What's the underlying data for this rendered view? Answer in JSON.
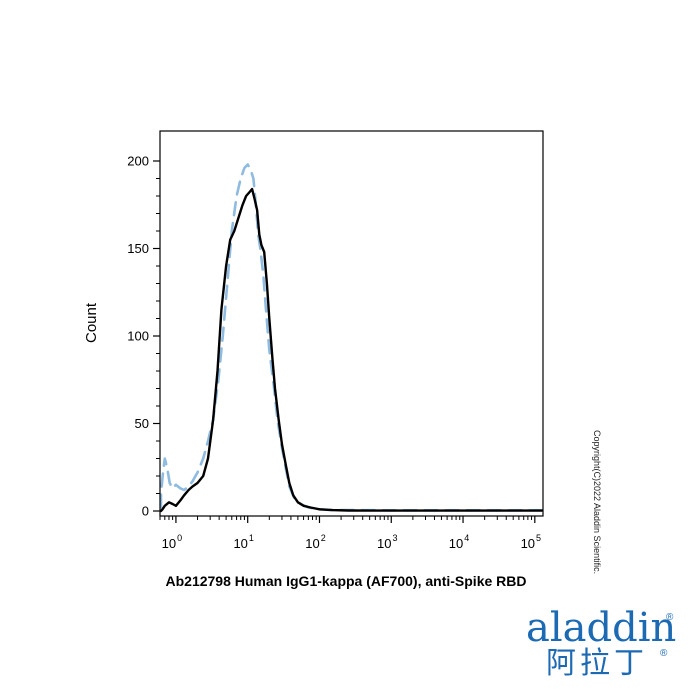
{
  "chart_data": {
    "type": "line",
    "title": "",
    "xlabel": "Ab212798 Human IgG1-kappa (AF700), anti-Spike RBD",
    "ylabel": "Count",
    "x_scale": "log",
    "xlim": [
      0.6,
      130000
    ],
    "ylim": [
      0,
      210
    ],
    "y_ticks": [
      0,
      50,
      100,
      150,
      200
    ],
    "y_tick_labels": [
      "0",
      "50",
      "100",
      "150",
      "200"
    ],
    "x_ticks": [
      {
        "base": "10",
        "exp": "0",
        "value": 1
      },
      {
        "base": "10",
        "exp": "1",
        "value": 10
      },
      {
        "base": "10",
        "exp": "2",
        "value": 100
      },
      {
        "base": "10",
        "exp": "3",
        "value": 1000
      },
      {
        "base": "10",
        "exp": "4",
        "value": 10000
      },
      {
        "base": "10",
        "exp": "5",
        "value": 100000
      }
    ],
    "grid": false,
    "legend": "none",
    "series": [
      {
        "style": "dashed",
        "color": "#8fbbe0",
        "x": [
          0.6,
          0.62,
          0.66,
          0.7,
          0.76,
          0.82,
          0.9,
          1.0,
          1.15,
          1.3,
          1.5,
          1.7,
          2.0,
          2.4,
          2.8,
          3.3,
          3.9,
          4.5,
          5.2,
          6.0,
          7.0,
          8.0,
          9.0,
          10.0,
          11.0,
          12.0,
          13.0,
          14.0,
          15.0,
          16.5,
          18.0,
          20.0,
          23.0,
          26.0,
          30.0,
          34.0,
          38.0,
          45.0,
          55.0,
          70.0,
          100.0,
          150.0,
          300.0,
          1000.0,
          10000.0,
          130000.0
        ],
        "y": [
          2,
          10,
          22,
          30,
          24,
          16,
          13,
          15,
          13,
          12,
          14,
          17,
          22,
          30,
          40,
          52,
          75,
          100,
          130,
          160,
          180,
          190,
          196,
          198,
          195,
          190,
          175,
          158,
          150,
          135,
          115,
          92,
          72,
          52,
          36,
          24,
          14,
          7,
          4,
          2,
          1,
          0.5,
          0.5,
          0.4,
          0.4,
          0.4
        ]
      },
      {
        "style": "solid",
        "color": "#000000",
        "x": [
          0.6,
          0.65,
          0.7,
          0.8,
          0.9,
          1.0,
          1.15,
          1.3,
          1.5,
          1.7,
          2.0,
          2.4,
          2.8,
          3.3,
          3.8,
          4.3,
          5.0,
          5.7,
          6.5,
          7.5,
          8.5,
          9.5,
          10.5,
          11.5,
          12.5,
          13.5,
          14.5,
          15.5,
          17.0,
          18.5,
          20.0,
          22.0,
          24.0,
          27.0,
          30.0,
          34.0,
          38.0,
          43.0,
          50.0,
          60.0,
          75.0,
          100.0,
          150.0,
          250.0,
          500.0,
          5000.0,
          130000.0
        ],
        "y": [
          0,
          1,
          3,
          5,
          4,
          3,
          6,
          9,
          12,
          14,
          16,
          20,
          30,
          52,
          80,
          115,
          140,
          155,
          160,
          168,
          175,
          180,
          182,
          184,
          178,
          172,
          158,
          152,
          148,
          130,
          110,
          88,
          70,
          52,
          38,
          26,
          16,
          9,
          5,
          3,
          2,
          1,
          0.5,
          0.3,
          0.2,
          0.2,
          0.2
        ]
      }
    ]
  },
  "watermark": {
    "copyright": "Copyright(C)2022 Aladdin Scientific.",
    "logo_text_en": "aladdin",
    "logo_text_cn": "阿拉丁",
    "logo_mark": "®",
    "logo_color": "#1c6ab3"
  }
}
